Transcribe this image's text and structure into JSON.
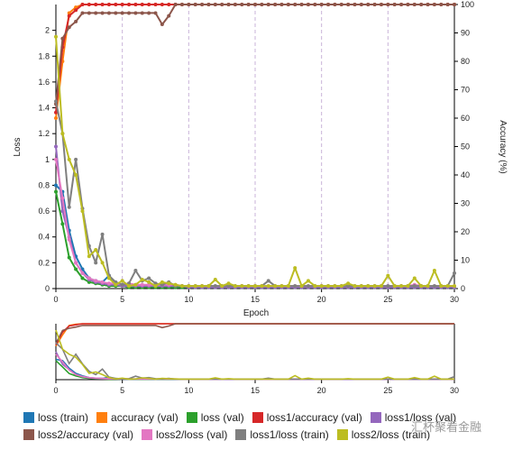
{
  "chart_data": {
    "type": "line",
    "xlabel": "Epoch",
    "ylabel_left": "Loss",
    "ylabel_right": "Accuracy (%)",
    "xlim": [
      0,
      30
    ],
    "ylim_left": [
      0,
      2.2
    ],
    "ylim_right": [
      0,
      100
    ],
    "x_ticks": [
      0,
      5,
      10,
      15,
      20,
      25,
      30
    ],
    "y_ticks_left": [
      0,
      0.2,
      0.4,
      0.6,
      0.8,
      1,
      1.2,
      1.4,
      1.6,
      1.8,
      2
    ],
    "y_ticks_right": [
      0,
      10,
      20,
      30,
      40,
      50,
      60,
      70,
      80,
      90,
      100
    ],
    "grid": "vertical dashed at x ticks",
    "legend_position": "bottom",
    "x": [
      0,
      0.5,
      1,
      1.5,
      2,
      2.5,
      3,
      3.5,
      4,
      4.5,
      5,
      5.5,
      6,
      6.5,
      7,
      7.5,
      8,
      8.5,
      9,
      9.5,
      10,
      10.5,
      11,
      11.5,
      12,
      12.5,
      13,
      13.5,
      14,
      14.5,
      15,
      15.5,
      16,
      16.5,
      17,
      17.5,
      18,
      18.5,
      19,
      19.5,
      20,
      20.5,
      21,
      21.5,
      22,
      22.5,
      23,
      23.5,
      24,
      24.5,
      25,
      25.5,
      26,
      26.5,
      27,
      27.5,
      28,
      28.5,
      29,
      29.5,
      30
    ],
    "series": [
      {
        "name": "loss (train)",
        "axis": "left",
        "color": "#1f77b4",
        "values": [
          0.8,
          0.75,
          0.45,
          0.25,
          0.15,
          0.08,
          0.06,
          0.05,
          0.1,
          0.04,
          0.03,
          0.02,
          0.02,
          0.02,
          0.015,
          0.015,
          0.01,
          0.01,
          0.01,
          0.01,
          0.01,
          0.01,
          0.01,
          0.01,
          0.01,
          0.01,
          0.01,
          0.01,
          0.01,
          0.01,
          0.01,
          0.01,
          0.01,
          0.01,
          0.01,
          0.01,
          0.01,
          0.01,
          0.01,
          0.01,
          0.01,
          0.01,
          0.01,
          0.01,
          0.01,
          0.01,
          0.01,
          0.01,
          0.01,
          0.01,
          0.01,
          0.01,
          0.01,
          0.01,
          0.01,
          0.01,
          0.01,
          0.01,
          0.01,
          0.01,
          0.01
        ]
      },
      {
        "name": "accuracy (val)",
        "axis": "right",
        "color": "#ff7f0e",
        "values": [
          60,
          80,
          97,
          99,
          100,
          100,
          100,
          100,
          100,
          100,
          100,
          100,
          100,
          100,
          100,
          100,
          100,
          100,
          100,
          100,
          100,
          100,
          100,
          100,
          100,
          100,
          100,
          100,
          100,
          100,
          100,
          100,
          100,
          100,
          100,
          100,
          100,
          100,
          100,
          100,
          100,
          100,
          100,
          100,
          100,
          100,
          100,
          100,
          100,
          100,
          100,
          100,
          100,
          100,
          100,
          100,
          100,
          100,
          100,
          100,
          100
        ]
      },
      {
        "name": "loss (val)",
        "axis": "left",
        "color": "#2ca02c",
        "values": [
          0.75,
          0.5,
          0.24,
          0.15,
          0.08,
          0.05,
          0.04,
          0.03,
          0.02,
          0.02,
          0.02,
          0.01,
          0.01,
          0.01,
          0.01,
          0.01,
          0.01,
          0.01,
          0.01,
          0.01,
          0.01,
          0.01,
          0.01,
          0.01,
          0.01,
          0.01,
          0.01,
          0.01,
          0.01,
          0.01,
          0.01,
          0.01,
          0.01,
          0.01,
          0.01,
          0.01,
          0.01,
          0.01,
          0.01,
          0.01,
          0.01,
          0.01,
          0.01,
          0.01,
          0.01,
          0.01,
          0.01,
          0.01,
          0.01,
          0.01,
          0.01,
          0.01,
          0.01,
          0.01,
          0.01,
          0.01,
          0.01,
          0.01,
          0.01,
          0.01,
          0.01
        ]
      },
      {
        "name": "loss1/accuracy (val)",
        "axis": "right",
        "color": "#d62728",
        "values": [
          62,
          85,
          96,
          98,
          100,
          100,
          100,
          100,
          100,
          100,
          100,
          100,
          100,
          100,
          100,
          100,
          100,
          100,
          100,
          100,
          100,
          100,
          100,
          100,
          100,
          100,
          100,
          100,
          100,
          100,
          100,
          100,
          100,
          100,
          100,
          100,
          100,
          100,
          100,
          100,
          100,
          100,
          100,
          100,
          100,
          100,
          100,
          100,
          100,
          100,
          100,
          100,
          100,
          100,
          100,
          100,
          100,
          100,
          100,
          100,
          100
        ]
      },
      {
        "name": "loss1/loss (val)",
        "axis": "left",
        "color": "#9467bd",
        "values": [
          1.1,
          0.6,
          0.4,
          0.2,
          0.12,
          0.07,
          0.05,
          0.04,
          0.03,
          0.03,
          0.02,
          0.02,
          0.02,
          0.02,
          0.02,
          0.02,
          0.02,
          0.02,
          0.02,
          0.02,
          0.01,
          0.01,
          0.01,
          0.01,
          0.01,
          0.01,
          0.01,
          0.01,
          0.01,
          0.01,
          0.01,
          0.01,
          0.01,
          0.01,
          0.01,
          0.01,
          0.01,
          0.01,
          0.01,
          0.01,
          0.01,
          0.01,
          0.01,
          0.01,
          0.01,
          0.01,
          0.01,
          0.01,
          0.01,
          0.01,
          0.01,
          0.01,
          0.01,
          0.01,
          0.01,
          0.01,
          0.01,
          0.01,
          0.01,
          0.01,
          0.01
        ]
      },
      {
        "name": "loss2/accuracy (val)",
        "axis": "right",
        "color": "#8c564b",
        "values": [
          65,
          88,
          92,
          94,
          97,
          97,
          97,
          97,
          97,
          97,
          97,
          97,
          97,
          97,
          97,
          97,
          93,
          96,
          100,
          100,
          100,
          100,
          100,
          100,
          100,
          100,
          100,
          100,
          100,
          100,
          100,
          100,
          100,
          100,
          100,
          100,
          100,
          100,
          100,
          100,
          100,
          100,
          100,
          100,
          100,
          100,
          100,
          100,
          100,
          100,
          100,
          100,
          100,
          100,
          100,
          100,
          100,
          100,
          100,
          100,
          100
        ]
      },
      {
        "name": "loss2/loss (val)",
        "axis": "left",
        "color": "#e377c2",
        "values": [
          1.0,
          0.7,
          0.38,
          0.2,
          0.12,
          0.08,
          0.06,
          0.05,
          0.04,
          0.04,
          0.03,
          0.04,
          0.03,
          0.03,
          0.03,
          0.03,
          0.03,
          0.03,
          0.03,
          0.02,
          0.02,
          0.02,
          0.02,
          0.02,
          0.02,
          0.02,
          0.02,
          0.02,
          0.02,
          0.02,
          0.02,
          0.02,
          0.02,
          0.02,
          0.02,
          0.02,
          0.02,
          0.02,
          0.02,
          0.02,
          0.02,
          0.02,
          0.02,
          0.02,
          0.02,
          0.02,
          0.02,
          0.02,
          0.02,
          0.02,
          0.02,
          0.02,
          0.02,
          0.02,
          0.03,
          0.02,
          0.02,
          0.02,
          0.02,
          0.02,
          0.02
        ]
      },
      {
        "name": "loss1/loss (train)",
        "axis": "left",
        "color": "#7f7f7f",
        "values": [
          1.45,
          1.2,
          0.63,
          1.0,
          0.62,
          0.33,
          0.2,
          0.42,
          0.1,
          0.05,
          0.03,
          0.04,
          0.14,
          0.06,
          0.08,
          0.04,
          0.03,
          0.05,
          0.02,
          0.02,
          0.02,
          0.02,
          0.02,
          0.02,
          0.02,
          0.02,
          0.02,
          0.02,
          0.02,
          0.02,
          0.02,
          0.02,
          0.06,
          0.02,
          0.02,
          0.02,
          0.02,
          0.02,
          0.02,
          0.02,
          0.02,
          0.02,
          0.02,
          0.02,
          0.02,
          0.02,
          0.02,
          0.02,
          0.02,
          0.02,
          0.02,
          0.02,
          0.02,
          0.02,
          0.02,
          0.02,
          0.02,
          0.02,
          0.02,
          0.02,
          0.12
        ]
      },
      {
        "name": "loss2/loss (train)",
        "axis": "left",
        "color": "#bcbd22",
        "values": [
          1.95,
          1.2,
          1.0,
          0.88,
          0.6,
          0.25,
          0.3,
          0.2,
          0.08,
          0.03,
          0.06,
          0.02,
          0.03,
          0.07,
          0.05,
          0.02,
          0.05,
          0.04,
          0.03,
          0.02,
          0.02,
          0.02,
          0.02,
          0.02,
          0.07,
          0.02,
          0.04,
          0.02,
          0.02,
          0.02,
          0.02,
          0.02,
          0.02,
          0.02,
          0.02,
          0.02,
          0.16,
          0.02,
          0.06,
          0.02,
          0.02,
          0.02,
          0.02,
          0.02,
          0.04,
          0.02,
          0.02,
          0.02,
          0.02,
          0.02,
          0.1,
          0.02,
          0.02,
          0.02,
          0.08,
          0.02,
          0.02,
          0.14,
          0.02,
          0.02,
          0.02
        ]
      }
    ]
  },
  "watermark": "汇杯聚看金融"
}
